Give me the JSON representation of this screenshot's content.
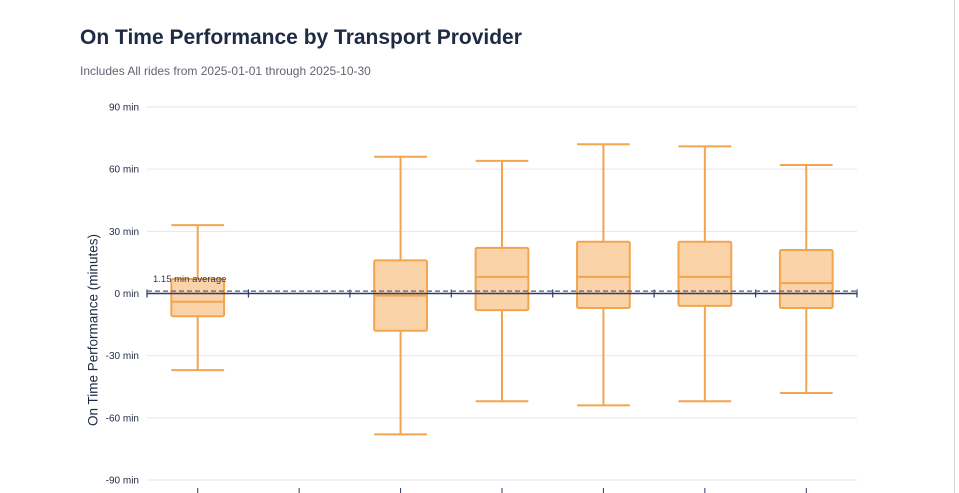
{
  "title": "On Time Performance by Transport Provider",
  "subtitle": "Includes All rides from 2025-01-01 through 2025-10-30",
  "chart_data": {
    "type": "box",
    "ylabel": "On Time Performance (minutes)",
    "ylim": [
      -90,
      90
    ],
    "yticks": [
      90,
      60,
      30,
      0,
      -30,
      -60,
      -90
    ],
    "ytick_labels": [
      "90 min",
      "60 min",
      "30 min",
      "0 min",
      "-30 min",
      "-60 min",
      "-90 min"
    ],
    "grid": true,
    "reference_line": {
      "value": 1.15,
      "label": "1.15 min average"
    },
    "colors": {
      "box_fill": "#fbd3a8",
      "box_stroke": "#f2a54e",
      "axis": "#2b3a67",
      "grid": "#e6e6e6",
      "ref_line": "#6b6f9c"
    },
    "boxes": [
      {
        "min": -37,
        "q1": -11,
        "median": -4,
        "q3": 7,
        "max": 33
      },
      null,
      {
        "min": -68,
        "q1": -18,
        "median": -1,
        "q3": 16,
        "max": 66
      },
      {
        "min": -52,
        "q1": -8,
        "median": 8,
        "q3": 22,
        "max": 64
      },
      {
        "min": -54,
        "q1": -7,
        "median": 8,
        "q3": 25,
        "max": 72
      },
      {
        "min": -52,
        "q1": -6,
        "median": 8,
        "q3": 25,
        "max": 71
      },
      {
        "min": -48,
        "q1": -7,
        "median": 5,
        "q3": 21,
        "max": 62
      }
    ]
  }
}
